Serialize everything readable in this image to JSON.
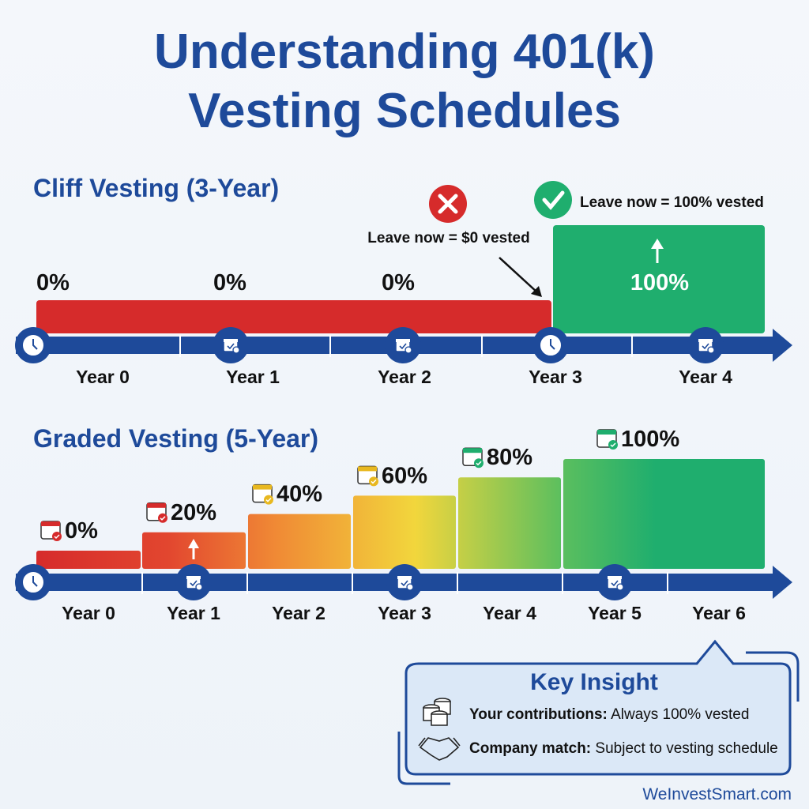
{
  "title": {
    "line1": "Understanding 401(k)",
    "line2": "Vesting Schedules"
  },
  "cliff": {
    "heading": "Cliff Vesting (3-Year)",
    "labels": [
      "0%",
      "0%",
      "0%",
      "100%"
    ],
    "years": [
      "Year 0",
      "Year 1",
      "Year 2",
      "Year 3",
      "Year 4"
    ],
    "leave_zero": "Leave now = $0 vested",
    "leave_full": "Leave now = 100% vested",
    "vested_percent_by_year": [
      0,
      0,
      0,
      100,
      100
    ]
  },
  "graded": {
    "heading": "Graded Vesting (5-Year)",
    "labels": [
      "0%",
      "20%",
      "40%",
      "60%",
      "80%",
      "100%"
    ],
    "years": [
      "Year 0",
      "Year 1",
      "Year 2",
      "Year 3",
      "Year 4",
      "Year 5",
      "Year 6"
    ]
  },
  "chart_data": {
    "type": "bar",
    "title": "Graded Vesting (5-Year)",
    "categories": [
      "Year 0",
      "Year 1",
      "Year 2",
      "Year 3",
      "Year 4",
      "Year 5"
    ],
    "values": [
      0,
      20,
      40,
      60,
      80,
      100
    ],
    "ylim": [
      0,
      100
    ]
  },
  "insight": {
    "title": "Key Insight",
    "rows": [
      {
        "bold": "Your contributions:",
        "text": " Always 100% vested"
      },
      {
        "bold": "Company match:",
        "text": " Subject to vesting schedule"
      }
    ]
  },
  "footer": "WeInvestSmart.com",
  "colors": {
    "brand": "#1e4a9a",
    "red": "#d62b2b",
    "green": "#1fae6e",
    "yellow": "#f0d23a"
  }
}
